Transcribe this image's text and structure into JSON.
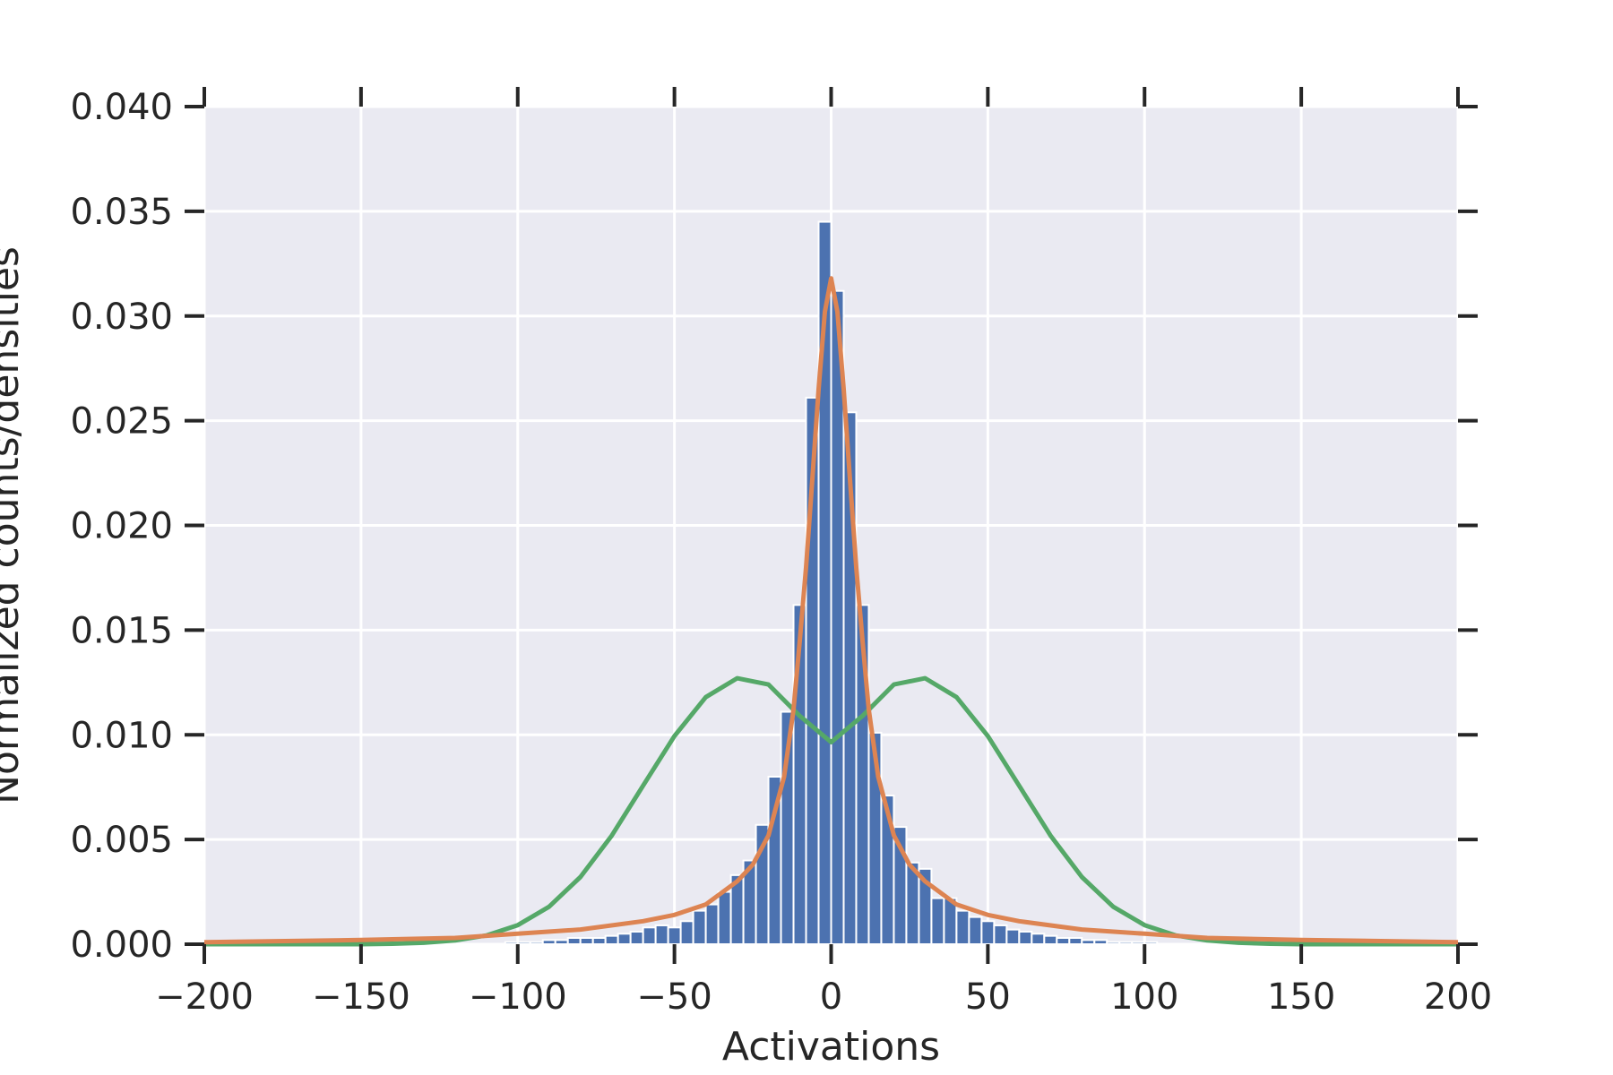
{
  "chart_data": {
    "type": "bar",
    "title": "",
    "xlabel": "Activations",
    "ylabel": "Normalized counts/densities",
    "xlim": [
      -200,
      200
    ],
    "ylim": [
      0,
      0.04
    ],
    "grid": true,
    "legend": "none",
    "xticks": [
      -200,
      -150,
      -100,
      -50,
      0,
      50,
      100,
      150,
      200
    ],
    "xtick_labels": [
      "−200",
      "−150",
      "−100",
      "−50",
      "0",
      "50",
      "100",
      "150",
      "200"
    ],
    "yticks": [
      0,
      0.005,
      0.01,
      0.015,
      0.02,
      0.025,
      0.03,
      0.035,
      0.04
    ],
    "ytick_labels": [
      "0.000",
      "0.005",
      "0.010",
      "0.015",
      "0.020",
      "0.025",
      "0.030",
      "0.035",
      "0.040"
    ],
    "histogram": {
      "bin_width": 4,
      "bin_starts": [
        -104,
        -100,
        -96,
        -92,
        -88,
        -84,
        -80,
        -76,
        -72,
        -68,
        -64,
        -60,
        -56,
        -52,
        -48,
        -44,
        -40,
        -36,
        -32,
        -28,
        -24,
        -20,
        -16,
        -12,
        -8,
        -4,
        0,
        4,
        8,
        12,
        16,
        20,
        24,
        28,
        32,
        36,
        40,
        44,
        48,
        52,
        56,
        60,
        64,
        68,
        72,
        76,
        80,
        84,
        88,
        92,
        96,
        100
      ],
      "values": [
        0.0001,
        0.0001,
        0.0001,
        0.0002,
        0.0002,
        0.0003,
        0.0003,
        0.0003,
        0.0004,
        0.0005,
        0.0006,
        0.0008,
        0.0009,
        0.0008,
        0.0011,
        0.0016,
        0.0019,
        0.0025,
        0.0033,
        0.004,
        0.0057,
        0.008,
        0.0111,
        0.0162,
        0.0261,
        0.0345,
        0.0312,
        0.0254,
        0.0162,
        0.0101,
        0.0071,
        0.0056,
        0.0039,
        0.0036,
        0.0022,
        0.0022,
        0.0016,
        0.0013,
        0.0011,
        0.0009,
        0.0007,
        0.0006,
        0.0005,
        0.0004,
        0.0003,
        0.0003,
        0.0002,
        0.0002,
        0.0001,
        0.0001,
        0.0001,
        0.0001
      ],
      "color": "#4c72b0"
    },
    "series": [
      {
        "kind": "gaussian",
        "color": "#55a868",
        "x": [
          -200,
          -190,
          -180,
          -170,
          -160,
          -150,
          -140,
          -130,
          -120,
          -110,
          -100,
          -90,
          -80,
          -70,
          -60,
          -50,
          -40,
          -30,
          -20,
          -10,
          0,
          10,
          20,
          30,
          40,
          50,
          60,
          70,
          80,
          90,
          100,
          110,
          120,
          130,
          140,
          150,
          160,
          170,
          180,
          190,
          200
        ],
        "y": [
          0.0,
          0.0,
          0.0,
          0.0,
          0.0,
          0.0,
          2e-05,
          7e-05,
          0.00018,
          0.00042,
          0.00091,
          0.00179,
          0.00321,
          0.00519,
          0.00757,
          0.00994,
          0.0118,
          0.0127,
          0.0124,
          0.0109,
          0.00965,
          0.0109,
          0.0124,
          0.0127,
          0.0118,
          0.00994,
          0.00757,
          0.00519,
          0.00321,
          0.00179,
          0.00091,
          0.00042,
          0.00018,
          7e-05,
          2e-05,
          0.0,
          0.0,
          0.0,
          0.0,
          0.0,
          0.0
        ]
      },
      {
        "kind": "laplace-like",
        "color": "#dd8452",
        "x": [
          -200,
          -150,
          -120,
          -100,
          -80,
          -60,
          -50,
          -40,
          -30,
          -25,
          -20,
          -15,
          -12,
          -10,
          -8,
          -6,
          -4,
          -2,
          0,
          2,
          4,
          6,
          8,
          10,
          12,
          15,
          20,
          25,
          30,
          40,
          50,
          60,
          80,
          100,
          120,
          150,
          200
        ],
        "y": [
          0.0001,
          0.0002,
          0.0003,
          0.0005,
          0.0007,
          0.0011,
          0.0014,
          0.0019,
          0.003,
          0.0038,
          0.0052,
          0.008,
          0.0112,
          0.0145,
          0.018,
          0.0222,
          0.0265,
          0.0302,
          0.0318,
          0.0302,
          0.0265,
          0.0222,
          0.018,
          0.0145,
          0.0112,
          0.008,
          0.0052,
          0.0038,
          0.003,
          0.0019,
          0.0014,
          0.0011,
          0.0007,
          0.0005,
          0.0003,
          0.0002,
          0.0001
        ]
      }
    ],
    "colors": {
      "plot_background": "#eaeaf2",
      "grid": "#ffffff",
      "text": "#262626"
    }
  }
}
